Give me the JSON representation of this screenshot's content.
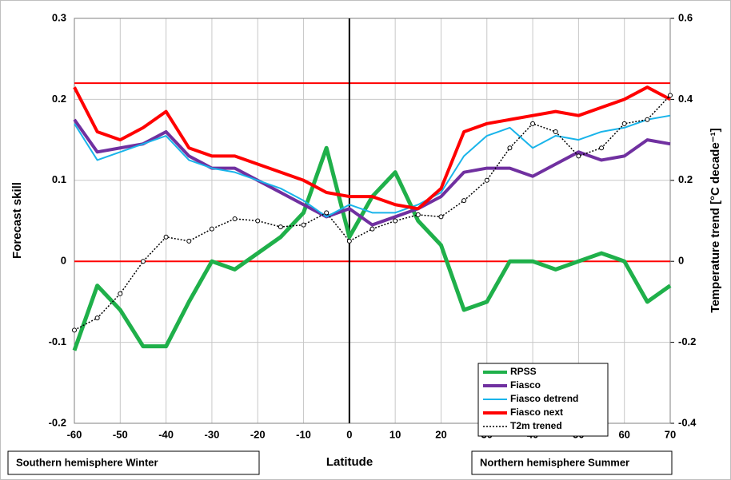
{
  "chart_data": {
    "type": "line",
    "y_label": "Forecast  skill",
    "y2_label": "Temperature trend  [°C  decade⁻¹]",
    "x_label": "Latitude",
    "annotations": [
      "Southern hemisphere Winter",
      "Northern hemisphere Summer"
    ],
    "x": [
      -60,
      -55,
      -50,
      -45,
      -40,
      -35,
      -30,
      -25,
      -20,
      -15,
      -10,
      -5,
      0,
      5,
      10,
      15,
      20,
      25,
      30,
      35,
      40,
      45,
      50,
      55,
      60,
      65,
      70
    ],
    "xlim": [
      -60,
      70
    ],
    "xticks": [
      -60,
      -50,
      -40,
      -30,
      -20,
      -10,
      0,
      10,
      20,
      30,
      40,
      50,
      60,
      70
    ],
    "ylim": [
      -0.2,
      0.3
    ],
    "yticks": [
      -0.2,
      -0.1,
      0,
      0.1,
      0.2,
      0.3
    ],
    "y2lim": [
      -0.4,
      0.6
    ],
    "y2ticks": [
      -0.4,
      -0.2,
      0,
      0.2,
      0.4,
      0.6
    ],
    "grid": true,
    "legend": "lower right",
    "reference_lines": [
      0.22,
      0
    ],
    "reference_color": "#ff0000",
    "vline": 0,
    "series": [
      {
        "name": "RPSS",
        "color": "#1fb04a",
        "width": 5,
        "values": [
          -0.11,
          -0.03,
          -0.06,
          -0.105,
          -0.105,
          -0.05,
          0.0,
          -0.01,
          0.01,
          0.03,
          0.06,
          0.14,
          0.03,
          0.08,
          0.11,
          0.05,
          0.02,
          -0.06,
          -0.05,
          0.0,
          0.0,
          -0.01,
          0.0,
          0.01,
          0.0,
          -0.05,
          -0.03
        ]
      },
      {
        "name": "Fiasco",
        "color": "#7030a0",
        "width": 4,
        "values": [
          0.175,
          0.135,
          0.14,
          0.145,
          0.16,
          0.13,
          0.115,
          0.115,
          0.1,
          0.085,
          0.07,
          0.055,
          0.065,
          0.045,
          0.055,
          0.065,
          0.08,
          0.11,
          0.115,
          0.115,
          0.105,
          0.12,
          0.135,
          0.125,
          0.13,
          0.15,
          0.145
        ]
      },
      {
        "name": "Fiasco detrend",
        "color": "#19b4ea",
        "width": 2,
        "values": [
          0.17,
          0.125,
          0.135,
          0.145,
          0.155,
          0.125,
          0.115,
          0.11,
          0.1,
          0.09,
          0.075,
          0.055,
          0.07,
          0.06,
          0.06,
          0.07,
          0.085,
          0.13,
          0.155,
          0.165,
          0.14,
          0.155,
          0.15,
          0.16,
          0.165,
          0.175,
          0.18
        ]
      },
      {
        "name": "Fiasco next",
        "color": "#ff0000",
        "width": 4,
        "values": [
          0.215,
          0.16,
          0.15,
          0.165,
          0.185,
          0.14,
          0.13,
          0.13,
          0.12,
          0.11,
          0.1,
          0.085,
          0.08,
          0.08,
          0.07,
          0.065,
          0.09,
          0.16,
          0.17,
          0.175,
          0.18,
          0.185,
          0.18,
          0.19,
          0.2,
          0.215,
          0.2
        ]
      },
      {
        "name": "T2m trened",
        "color": "#000000",
        "width": 1.5,
        "dotted": true,
        "axis": "y2",
        "values": [
          -0.17,
          -0.14,
          -0.08,
          0.0,
          0.06,
          0.05,
          0.08,
          0.105,
          0.1,
          0.085,
          0.09,
          0.12,
          0.05,
          0.08,
          0.1,
          0.115,
          0.11,
          0.15,
          0.2,
          0.28,
          0.34,
          0.32,
          0.26,
          0.28,
          0.34,
          0.35,
          0.41
        ]
      }
    ]
  }
}
